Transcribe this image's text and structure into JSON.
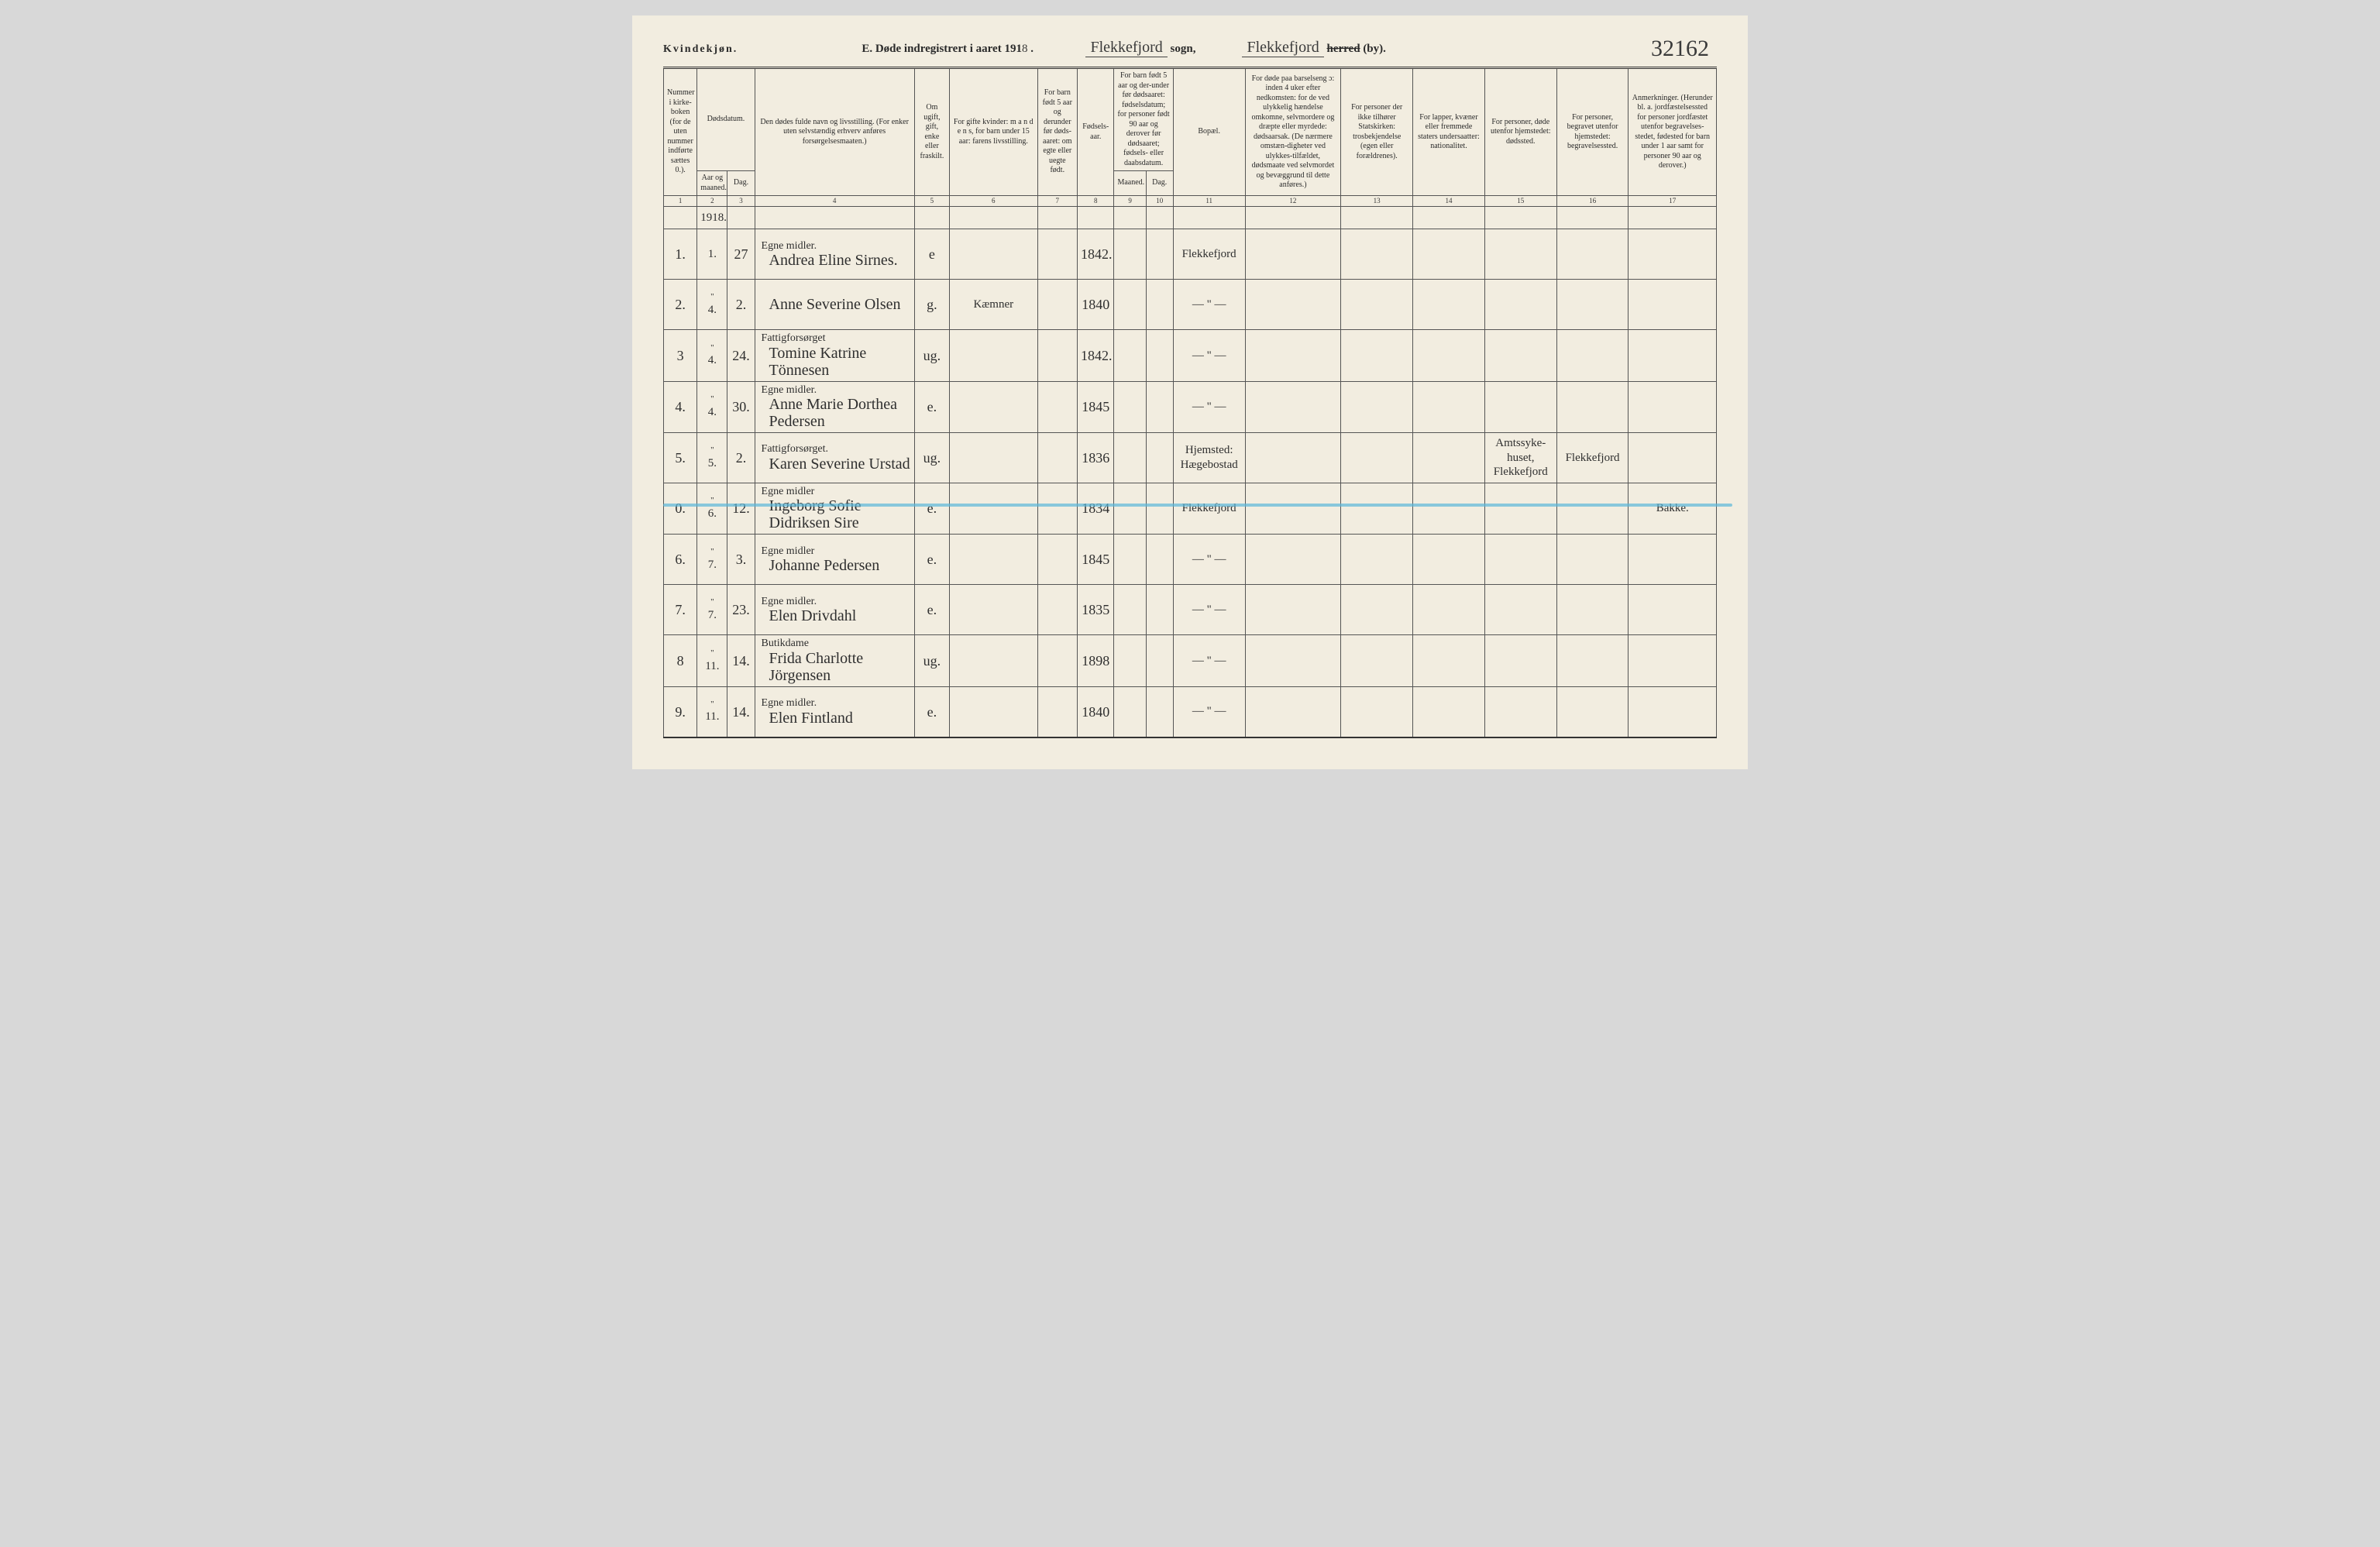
{
  "gender_label": "Kvindekjøn.",
  "title_prefix": "E.  Døde indregistrert i aaret 191",
  "title_year_digit": "8",
  "sogn_value": "Flekkefjord",
  "sogn_label": "sogn,",
  "herred_value": "Flekkefjord",
  "herred_struck": "herred",
  "herred_suffix": "(by).",
  "page_number": "32162",
  "headers": {
    "c1": "Nummer i kirke-boken (for de uten nummer indførte sættes 0.).",
    "c2_3": "Dødsdatum.",
    "c2": "Aar og maaned.",
    "c3": "Dag.",
    "c4": "Den dødes fulde navn og livsstilling. (For enker uten selvstændig erhverv anføres forsørgelsesmaaten.)",
    "c5": "Om ugift, gift, enke eller fraskilt.",
    "c6": "For gifte kvinder: m a n d e n s, for barn under 15 aar: farens livsstilling.",
    "c7": "For barn født 5 aar og derunder før døds-aaret: om egte eller uegte født.",
    "c8": "Fødsels-aar.",
    "c9_10": "For barn født 5 aar og der-under før dødsaaret: fødselsdatum; for personer født 90 aar og derover før dødsaaret; fødsels- eller daabsdatum.",
    "c9": "Maaned.",
    "c10": "Dag.",
    "c11": "Bopæl.",
    "c12": "For døde paa barselseng ɔ: inden 4 uker efter nedkomsten: for de ved ulykkelig hændelse omkomne, selvmordere og dræpte eller myrdede: dødsaarsak. (De nærmere omstæn-digheter ved ulykkes-tilfældet, dødsmaate ved selvmordet og bevæggrund til dette anføres.)",
    "c13": "For personer der ikke tilhører Statskirken: trosbekjendelse (egen eller forældrenes).",
    "c14": "For lapper, kvæner eller fremmede staters undersaatter: nationalitet.",
    "c15": "For personer, døde utenfor hjemstedet: dødssted.",
    "c16": "For personer, begravet utenfor hjemstedet: begravelsessted.",
    "c17": "Anmerkninger. (Herunder bl. a. jordfæstelsessted for personer jordfæstet utenfor begravelses-stedet, fødested for barn under 1 aar samt for personer 90 aar og derover.)"
  },
  "colnums": [
    "1",
    "2",
    "3",
    "4",
    "5",
    "6",
    "7",
    "8",
    "9",
    "10",
    "11",
    "12",
    "13",
    "14",
    "15",
    "16",
    "17"
  ],
  "year_row": "1918.",
  "rows": [
    {
      "num": "1.",
      "month": "1.",
      "day": "27",
      "status": "Egne midler.",
      "name": "Andrea Eline Sirnes.",
      "civil": "e",
      "spouse": "",
      "birth": "1842.",
      "residence": "Flekkefjord",
      "c15": "",
      "c16": "",
      "c17": ""
    },
    {
      "num": "2.",
      "month": "4.",
      "day": "2.",
      "status": "",
      "name": "Anne Severine Olsen",
      "civil": "g.",
      "spouse": "Kæmner",
      "birth": "1840",
      "residence": "— \" —",
      "c15": "",
      "c16": "",
      "c17": ""
    },
    {
      "num": "3",
      "month": "4.",
      "day": "24.",
      "status": "Fattigforsørget",
      "name": "Tomine Katrine Tönnesen",
      "civil": "ug.",
      "spouse": "",
      "birth": "1842.",
      "residence": "— \" —",
      "c15": "",
      "c16": "",
      "c17": ""
    },
    {
      "num": "4.",
      "month": "4.",
      "day": "30.",
      "status": "Egne midler.",
      "name": "Anne Marie Dorthea Pedersen",
      "civil": "e.",
      "spouse": "",
      "birth": "1845",
      "residence": "— \" —",
      "c15": "",
      "c16": "",
      "c17": ""
    },
    {
      "num": "5.",
      "month": "5.",
      "day": "2.",
      "status": "Fattigforsørget.",
      "name": "Karen Severine Urstad",
      "civil": "ug.",
      "spouse": "",
      "birth": "1836",
      "residence": "Hjemsted: Hægebostad",
      "c15": "Amtssyke-huset, Flekkefjord",
      "c16": "Flekkefjord",
      "c17": ""
    },
    {
      "num": "0.",
      "month": "6.",
      "day": "12.",
      "status": "Egne midler",
      "name": "Ingeborg Sofie Didriksen Sire",
      "civil": "e.",
      "spouse": "",
      "birth": "1834",
      "residence": "Flekkefjord",
      "c15": "",
      "c16": "",
      "c17": "Bakke.",
      "highlight": true
    },
    {
      "num": "6.",
      "month": "7.",
      "day": "3.",
      "status": "Egne midler",
      "name": "Johanne Pedersen",
      "civil": "e.",
      "spouse": "",
      "birth": "1845",
      "residence": "— \" —",
      "c15": "",
      "c16": "",
      "c17": ""
    },
    {
      "num": "7.",
      "month": "7.",
      "day": "23.",
      "status": "Egne midler.",
      "name": "Elen Drivdahl",
      "civil": "e.",
      "spouse": "",
      "birth": "1835",
      "residence": "— \" —",
      "c15": "",
      "c16": "",
      "c17": ""
    },
    {
      "num": "8",
      "month": "11.",
      "day": "14.",
      "status": "Butikdame",
      "name": "Frida Charlotte Jörgensen",
      "civil": "ug.",
      "spouse": "",
      "birth": "1898",
      "residence": "— \" —",
      "c15": "",
      "c16": "",
      "c17": ""
    },
    {
      "num": "9.",
      "month": "11.",
      "day": "14.",
      "status": "Egne midler.",
      "name": "Elen Fintland",
      "civil": "e.",
      "spouse": "",
      "birth": "1840",
      "residence": "— \" —",
      "c15": "",
      "c16": "",
      "c17": ""
    }
  ],
  "style": {
    "page_bg": "#f2ede0",
    "ink": "#2a2a2a",
    "highlight_color": "#5bb7d8",
    "hand_font": "Brush Script MT",
    "print_font": "Georgia"
  }
}
